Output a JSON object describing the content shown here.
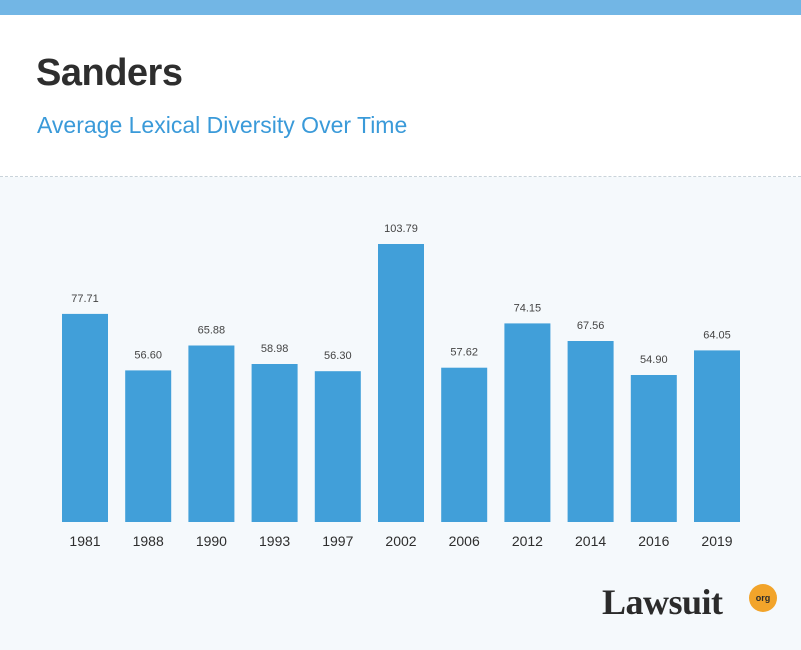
{
  "header": {
    "title": "Sanders",
    "subtitle": "Average Lexical Diversity Over Time"
  },
  "logo": {
    "text": "Lawsuit",
    "badge": "org"
  },
  "colors": {
    "bar": "#419fd9",
    "top_bar": "#72b6e5",
    "title": "#2e2e2e",
    "subtitle": "#3a9ad9",
    "badge": "#f2a42a"
  },
  "chart_data": {
    "type": "bar",
    "categories": [
      "1981",
      "1988",
      "1990",
      "1993",
      "1997",
      "2002",
      "2006",
      "2012",
      "2014",
      "2016",
      "2019"
    ],
    "values": [
      77.71,
      56.6,
      65.88,
      58.98,
      56.3,
      103.79,
      57.62,
      74.15,
      67.56,
      54.9,
      64.05
    ],
    "data_labels": [
      "77.71",
      "56.60",
      "65.88",
      "58.98",
      "56.30",
      "103.79",
      "57.62",
      "74.15",
      "67.56",
      "54.90",
      "64.05"
    ],
    "title": "Sanders",
    "subtitle": "Average Lexical Diversity Over Time",
    "xlabel": "",
    "ylabel": "",
    "ylim": [
      0,
      103.79
    ],
    "grid": false,
    "legend": "none"
  }
}
